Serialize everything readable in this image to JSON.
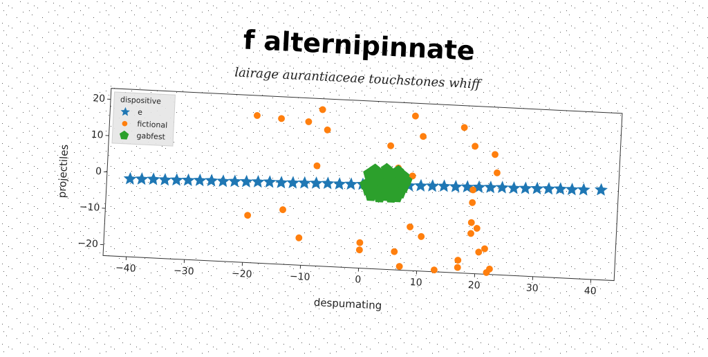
{
  "chart_data": {
    "type": "scatter",
    "title": "f alternipinnate",
    "subtitle": "lairage aurantiaceae touchstones whiff",
    "xlabel": "despumating",
    "ylabel": "projectiles",
    "legend_title": "dispositive",
    "legend": "upper left",
    "xlim": [
      -44,
      44
    ],
    "ylim": [
      -23,
      23
    ],
    "xticks": [
      {
        "value": -40,
        "label": "−40"
      },
      {
        "value": -30,
        "label": "−30"
      },
      {
        "value": -20,
        "label": "−20"
      },
      {
        "value": -10,
        "label": "−10"
      },
      0,
      10,
      20,
      30,
      40
    ],
    "yticks": [
      {
        "value": -20,
        "label": "−20"
      },
      {
        "value": -10,
        "label": "−10"
      },
      0,
      10,
      20
    ],
    "series": [
      {
        "name": "e",
        "color": "#1f77b4",
        "marker": "star",
        "x": [
          -40,
          -38,
          -36,
          -34,
          -32,
          -30,
          -28,
          -26,
          -24,
          -22,
          -20,
          -18,
          -16,
          -14,
          -12,
          -10,
          -8,
          -6,
          -4,
          -2,
          0,
          2,
          4,
          6,
          8,
          10,
          12,
          14,
          16,
          18,
          20,
          22,
          24,
          26,
          28,
          30,
          32,
          34,
          36,
          38,
          41
        ],
        "values": [
          -1.6,
          -1.5,
          -1.4,
          -1.4,
          -1.3,
          -1.2,
          -1.1,
          -1.0,
          -1.0,
          -0.9,
          -0.8,
          -0.7,
          -0.6,
          -0.6,
          -0.5,
          -0.4,
          -0.3,
          -0.2,
          -0.2,
          -0.1,
          0,
          0.1,
          0.2,
          0.2,
          0.3,
          0.4,
          0.5,
          0.6,
          0.6,
          0.7,
          0.8,
          0.9,
          1.0,
          1.0,
          1.1,
          1.2,
          1.3,
          1.4,
          1.4,
          1.5,
          1.7
        ]
      },
      {
        "name": "fictional",
        "color": "#ff7f0e",
        "marker": "circle",
        "x": [
          -18.7,
          -14.5,
          -9.8,
          -7.5,
          -6.5,
          -8,
          4.5,
          8.5,
          10,
          17,
          19,
          22.5,
          23,
          6,
          8.5,
          19,
          -19.5,
          -13.5,
          -10.5,
          0,
          0,
          6,
          7,
          8.5,
          10.5,
          13,
          17,
          17,
          19,
          19,
          20,
          20.5,
          21.5,
          22,
          22.5,
          19
        ],
        "values": [
          17.5,
          17,
          16.5,
          20,
          14.5,
          4.5,
          11,
          19.5,
          14,
          17,
          12,
          10,
          5,
          5,
          3,
          0,
          -10,
          -8,
          -15.5,
          -16,
          -18,
          -18,
          -22,
          -11,
          -13.5,
          -22.5,
          -19.5,
          -21.5,
          -9,
          -12,
          -10.5,
          -17,
          -16,
          -22.5,
          -21.5,
          -3.5
        ]
      },
      {
        "name": "gabfest",
        "color": "#2ca02c",
        "marker": "pentagon",
        "x": [
          1,
          2,
          3,
          4,
          5,
          6,
          7,
          1.5,
          2.5,
          3.5,
          4.5,
          5.5,
          6.5,
          7.5,
          0.5,
          2,
          3,
          4,
          5,
          6,
          7,
          1,
          2.5,
          3.5,
          4.5,
          5.5,
          6.5,
          1.5,
          3,
          4,
          5,
          6,
          2,
          4,
          6
        ],
        "values": [
          3,
          3.5,
          3,
          3.8,
          3.2,
          3.5,
          2.8,
          1.5,
          1.8,
          2,
          1.5,
          2.2,
          1.8,
          1.6,
          0,
          0.3,
          -0.2,
          0.2,
          0,
          0.4,
          -0.3,
          -1.5,
          -1.8,
          -1.2,
          -1.6,
          -1.4,
          -1.9,
          -3,
          -3.3,
          -2.8,
          -3.2,
          -3,
          4.2,
          4.5,
          4.1
        ]
      }
    ]
  }
}
